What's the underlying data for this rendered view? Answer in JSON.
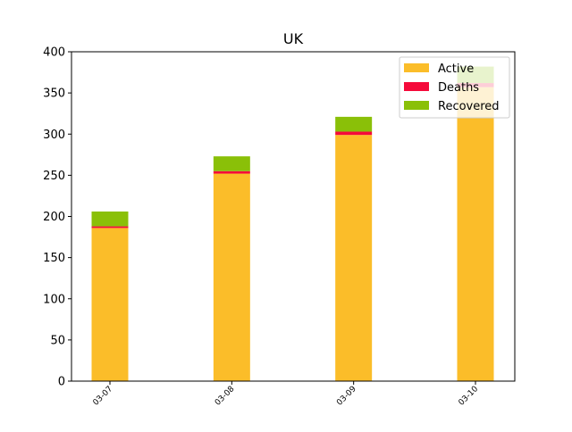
{
  "chart_data": {
    "type": "bar",
    "stacked": true,
    "title": "UK",
    "xlabel": "",
    "ylabel": "",
    "categories": [
      "03-07",
      "03-08",
      "03-09",
      "03-10"
    ],
    "series": [
      {
        "name": "Active",
        "values": [
          186,
          252,
          299,
          357
        ],
        "color": "#fbbd29"
      },
      {
        "name": "Deaths",
        "values": [
          2,
          3,
          4,
          5
        ],
        "color": "#f50a3a"
      },
      {
        "name": "Recovered",
        "values": [
          18,
          18,
          18,
          20
        ],
        "color": "#8ac008"
      }
    ],
    "ylim": [
      0,
      400
    ],
    "yticks": [
      0,
      50,
      100,
      150,
      200,
      250,
      300,
      350,
      400
    ],
    "grid": false,
    "legend_position": "top-right"
  }
}
